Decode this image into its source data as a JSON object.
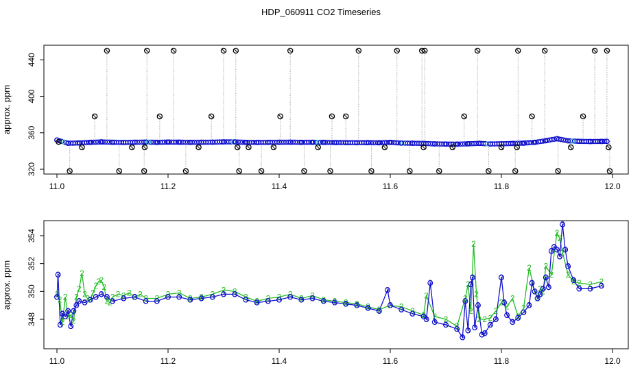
{
  "title": "HDP_060911  CO2 Timeseries",
  "colors": {
    "raw": "#000000",
    "line": "#999999",
    "series2": "#22bb22",
    "series3": "#1010cc",
    "cyan": "#33cccc"
  },
  "chart_data": [
    {
      "type": "line",
      "panel": "top",
      "title": "HDP_060911  CO2 Timeseries",
      "ylabel": "approx. ppm",
      "xlabel": "",
      "xlim": [
        11.0,
        12.0
      ],
      "ylim": [
        313,
        452
      ],
      "xticks": [
        "11.0",
        "11.2",
        "11.4",
        "11.6",
        "11.8",
        "12.0"
      ],
      "yticks": [
        "320",
        "360",
        "400",
        "440"
      ],
      "grid": false,
      "series": [
        {
          "marker": "open-circle",
          "x": [
            11.003,
            11.023,
            11.045,
            11.068,
            11.09,
            11.112,
            11.135,
            11.157,
            11.158,
            11.162,
            11.185,
            11.21,
            11.232,
            11.255,
            11.278,
            11.3,
            11.322,
            11.325,
            11.328,
            11.345,
            11.368,
            11.39,
            11.402,
            11.42,
            11.445,
            11.47,
            11.492,
            11.495,
            11.52,
            11.543,
            11.566,
            11.59,
            11.612,
            11.635,
            11.657,
            11.66,
            11.662,
            11.688,
            11.712,
            11.733,
            11.757,
            11.777,
            11.8,
            11.825,
            11.828,
            11.83,
            11.855,
            11.878,
            11.902,
            11.925,
            11.947,
            11.968,
            11.99,
            11.993,
            11.995
          ],
          "y": [
            350,
            318,
            344,
            378,
            450,
            318,
            344,
            318,
            344,
            450,
            378,
            450,
            318,
            344,
            378,
            450,
            450,
            344,
            318,
            344,
            318,
            344,
            378,
            450,
            318,
            344,
            318,
            378,
            378,
            450,
            318,
            344,
            450,
            318,
            450,
            344,
            450,
            318,
            344,
            378,
            450,
            318,
            344,
            318,
            344,
            450,
            378,
            450,
            318,
            344,
            378,
            450,
            450,
            344,
            318
          ]
        },
        {
          "marker": "circle",
          "x": [
            11.0,
            11.02,
            11.04,
            11.06,
            11.08,
            11.1,
            11.12,
            11.14,
            11.16,
            11.18,
            11.2,
            11.22,
            11.24,
            11.26,
            11.28,
            11.3,
            11.32,
            11.34,
            11.36,
            11.38,
            11.4,
            11.42,
            11.44,
            11.46,
            11.48,
            11.5,
            11.52,
            11.54,
            11.56,
            11.58,
            11.6,
            11.62,
            11.64,
            11.66,
            11.68,
            11.7,
            11.72,
            11.74,
            11.76,
            11.78,
            11.8,
            11.82,
            11.84,
            11.86,
            11.88,
            11.9,
            11.92,
            11.94,
            11.96,
            11.98,
            11.99
          ],
          "y": [
            352,
            348.5,
            348.8,
            349.5,
            350,
            349.6,
            349.4,
            349.6,
            349.8,
            349.5,
            349.8,
            349.7,
            349.5,
            349.6,
            349.7,
            350,
            350,
            349.5,
            349.4,
            349.5,
            349.6,
            349.7,
            349.5,
            349.6,
            349.5,
            349.3,
            349.2,
            349.1,
            349.2,
            349,
            349.5,
            348.7,
            348.5,
            348.3,
            347.8,
            347.6,
            347.5,
            347.9,
            348.4,
            347.7,
            347.9,
            348.3,
            348.6,
            349.5,
            351.3,
            353.5,
            351.2,
            350.6,
            350.4,
            350.5,
            350.6
          ]
        }
      ]
    },
    {
      "type": "line",
      "panel": "bottom",
      "title": "",
      "ylabel": "approx. ppm",
      "xlabel": "",
      "xlim": [
        11.0,
        12.0
      ],
      "ylim": [
        346.5,
        355
      ],
      "xticks": [
        "11.0",
        "11.2",
        "11.4",
        "11.6",
        "11.8",
        "12.0"
      ],
      "yticks": [
        "348",
        "350",
        "352",
        "354"
      ],
      "grid": false,
      "series": [
        {
          "marker": "2",
          "x": [
            11.0,
            11.005,
            11.01,
            11.015,
            11.02,
            11.025,
            11.03,
            11.035,
            11.04,
            11.045,
            11.05,
            11.055,
            11.06,
            11.065,
            11.07,
            11.075,
            11.08,
            11.085,
            11.09,
            11.095,
            11.1,
            11.11,
            11.12,
            11.13,
            11.14,
            11.15,
            11.16,
            11.18,
            11.2,
            11.22,
            11.24,
            11.26,
            11.28,
            11.3,
            11.32,
            11.34,
            11.36,
            11.38,
            11.4,
            11.42,
            11.44,
            11.46,
            11.48,
            11.5,
            11.52,
            11.54,
            11.56,
            11.58,
            11.6,
            11.62,
            11.64,
            11.66,
            11.665,
            11.68,
            11.7,
            11.72,
            11.735,
            11.74,
            11.745,
            11.75,
            11.755,
            11.76,
            11.77,
            11.78,
            11.79,
            11.8,
            11.81,
            11.82,
            11.83,
            11.84,
            11.85,
            11.86,
            11.865,
            11.87,
            11.875,
            11.88,
            11.89,
            11.9,
            11.905,
            11.91,
            11.92,
            11.93,
            11.94,
            11.96,
            11.98
          ],
          "y": [
            349.8,
            349.4,
            347.8,
            349.6,
            348.2,
            348.3,
            347.9,
            349.6,
            350.2,
            351.3,
            349.8,
            349.5,
            349.4,
            349.9,
            350.4,
            350.7,
            350.8,
            350.3,
            349.3,
            349.2,
            349.6,
            349.8,
            349.7,
            349.9,
            349.6,
            349.8,
            349.5,
            349.5,
            349.8,
            349.9,
            349.5,
            349.6,
            349.8,
            350.1,
            350.0,
            349.6,
            349.3,
            349.5,
            349.6,
            349.8,
            349.5,
            349.7,
            349.4,
            349.3,
            349.2,
            349.1,
            348.9,
            348.7,
            349.0,
            348.9,
            348.6,
            348.3,
            349.7,
            348.2,
            348.0,
            347.5,
            349.5,
            350.5,
            348.6,
            353.4,
            349.8,
            348.0,
            348.0,
            348.1,
            348.6,
            349.2,
            348.9,
            349.5,
            348.2,
            348.8,
            351.7,
            350.0,
            349.5,
            350.2,
            350.0,
            351.8,
            351.2,
            354.2,
            353.8,
            352.8,
            351.2,
            350.7,
            350.6,
            350.5,
            350.7
          ]
        },
        {
          "marker": "3",
          "x": [
            11.0,
            11.002,
            11.006,
            11.01,
            11.015,
            11.02,
            11.025,
            11.03,
            11.035,
            11.04,
            11.05,
            11.06,
            11.07,
            11.08,
            11.09,
            11.1,
            11.12,
            11.14,
            11.16,
            11.18,
            11.2,
            11.22,
            11.24,
            11.26,
            11.28,
            11.3,
            11.32,
            11.34,
            11.36,
            11.38,
            11.4,
            11.42,
            11.44,
            11.46,
            11.48,
            11.5,
            11.52,
            11.54,
            11.56,
            11.58,
            11.595,
            11.6,
            11.62,
            11.64,
            11.66,
            11.665,
            11.672,
            11.68,
            11.7,
            11.72,
            11.73,
            11.735,
            11.74,
            11.745,
            11.748,
            11.752,
            11.758,
            11.765,
            11.77,
            11.78,
            11.79,
            11.8,
            11.805,
            11.81,
            11.82,
            11.83,
            11.84,
            11.85,
            11.855,
            11.86,
            11.865,
            11.87,
            11.875,
            11.88,
            11.885,
            11.89,
            11.895,
            11.9,
            11.905,
            11.91,
            11.915,
            11.92,
            11.93,
            11.94,
            11.96,
            11.98
          ],
          "y": [
            349.6,
            351.2,
            347.6,
            348.4,
            348.2,
            348.6,
            347.5,
            348.6,
            349.0,
            349.3,
            349.2,
            349.4,
            349.6,
            349.8,
            349.6,
            349.3,
            349.5,
            349.6,
            349.3,
            349.3,
            349.6,
            349.6,
            349.4,
            349.5,
            349.6,
            349.8,
            349.8,
            349.4,
            349.2,
            349.3,
            349.4,
            349.6,
            349.4,
            349.5,
            349.3,
            349.2,
            349.1,
            349.0,
            348.8,
            348.6,
            350.1,
            349.0,
            348.7,
            348.4,
            348.2,
            348.0,
            350.6,
            347.8,
            347.6,
            347.3,
            346.7,
            349.3,
            347.2,
            350.5,
            351.0,
            347.4,
            349.0,
            346.9,
            347.0,
            347.6,
            348.0,
            351.0,
            349.2,
            348.3,
            347.8,
            348.1,
            348.5,
            349.0,
            350.6,
            350.0,
            349.5,
            349.8,
            350.2,
            351.0,
            350.3,
            352.9,
            353.2,
            353.0,
            352.5,
            354.8,
            353.0,
            351.8,
            350.8,
            350.2,
            350.2,
            350.4
          ]
        }
      ]
    }
  ]
}
